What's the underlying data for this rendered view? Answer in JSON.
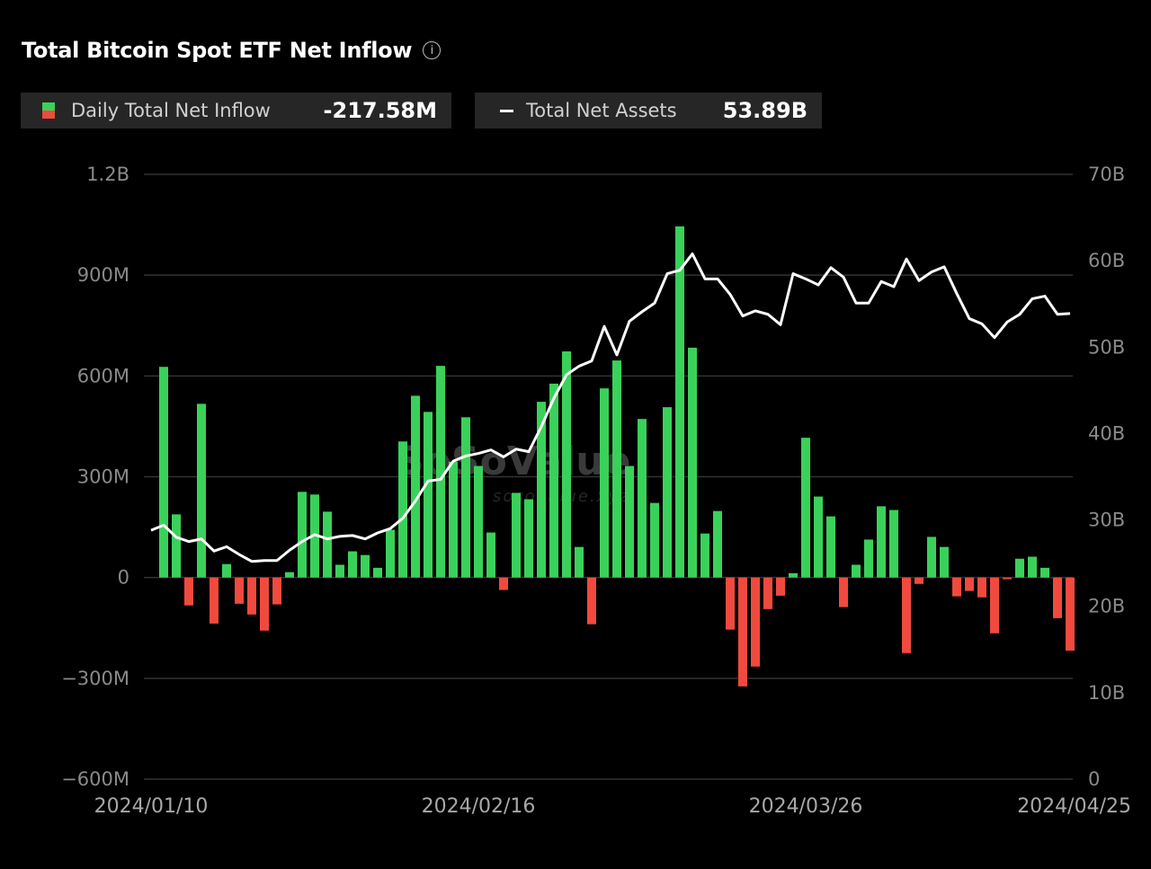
{
  "header": {
    "title": "Total Bitcoin Spot ETF Net Inflow",
    "info_icon": "info-circle-icon"
  },
  "legend": {
    "inflow": {
      "label": "Daily Total Net Inflow",
      "value": "-217.58M"
    },
    "assets": {
      "label": "Total Net Assets",
      "value": "53.89B"
    }
  },
  "watermark": {
    "logo": "SoSoValue",
    "url_text": "sosovalue.xyz"
  },
  "colors": {
    "positive": "#3ad15a",
    "negative": "#f04a3e",
    "line": "#ffffff",
    "grid": "#333333",
    "background": "#000000"
  },
  "chart_data": {
    "type": "bar+line",
    "title": "Total Bitcoin Spot ETF Net Inflow",
    "x_ticks": [
      "2024/01/10",
      "2024/02/16",
      "2024/03/26",
      "2024/04/25"
    ],
    "x_tick_positions": [
      0,
      26,
      52,
      73
    ],
    "left_axis": {
      "ticks": [
        "1.2B",
        "900M",
        "600M",
        "300M",
        "0",
        "−300M",
        "−600M"
      ],
      "tick_values": [
        1200,
        900,
        600,
        300,
        0,
        -300,
        -600
      ],
      "ylim": [
        -600,
        1200
      ],
      "unit": "M USD"
    },
    "right_axis": {
      "ticks": [
        "70B",
        "60B",
        "50B",
        "40B",
        "30B",
        "20B",
        "10B",
        "0"
      ],
      "tick_values": [
        70,
        60,
        50,
        40,
        30,
        20,
        10,
        0
      ],
      "ylim": [
        0,
        70
      ],
      "unit": "B USD"
    },
    "grid": true,
    "series": [
      {
        "name": "Daily Total Net Inflow",
        "type": "bar",
        "axis": "left",
        "values": [
          null,
          627,
          188,
          -83,
          517,
          -137,
          40,
          -78,
          -110,
          -158,
          -80,
          16,
          255,
          247,
          196,
          38,
          78,
          67,
          29,
          142,
          405,
          541,
          493,
          630,
          345,
          477,
          332,
          134,
          -37,
          252,
          233,
          523,
          577,
          673,
          91,
          -139,
          563,
          646,
          332,
          472,
          222,
          507,
          1045,
          684,
          131,
          198,
          -155,
          -324,
          -265,
          -94,
          -54,
          13,
          416,
          241,
          182,
          -88,
          38,
          113,
          212,
          201,
          -225,
          -19,
          121,
          91,
          -56,
          -40,
          -59,
          -166,
          -5,
          56,
          62,
          29,
          -121,
          -217.58
        ]
      },
      {
        "name": "Total Net Assets",
        "type": "line",
        "axis": "right",
        "values": [
          28.8,
          29.4,
          28.0,
          27.5,
          27.8,
          26.4,
          26.9,
          26.0,
          25.2,
          25.3,
          25.3,
          26.5,
          27.5,
          28.3,
          27.8,
          28.1,
          28.2,
          27.8,
          28.5,
          29.0,
          30.2,
          32.2,
          34.5,
          34.7,
          36.8,
          37.4,
          37.7,
          38.1,
          37.3,
          38.2,
          37.9,
          40.8,
          44.1,
          46.8,
          47.8,
          48.4,
          52.4,
          49.1,
          53.0,
          54.1,
          55.1,
          58.5,
          58.9,
          60.8,
          57.9,
          57.9,
          56.1,
          53.6,
          54.2,
          53.8,
          52.6,
          58.5,
          57.9,
          57.2,
          59.2,
          58.1,
          55.1,
          55.1,
          57.6,
          57.0,
          60.2,
          57.7,
          58.7,
          59.3,
          56.2,
          53.3,
          52.7,
          51.1,
          52.9,
          53.8,
          55.6,
          55.9,
          53.8,
          53.89
        ]
      }
    ]
  }
}
